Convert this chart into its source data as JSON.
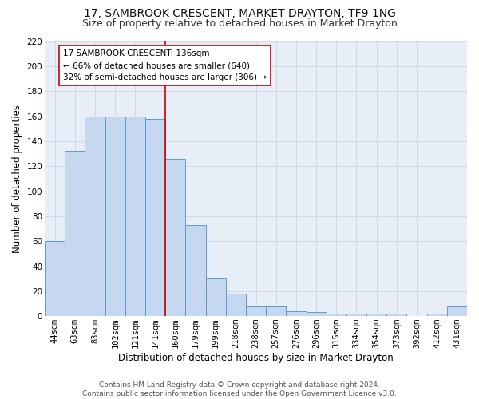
{
  "title": "17, SAMBROOK CRESCENT, MARKET DRAYTON, TF9 1NG",
  "subtitle": "Size of property relative to detached houses in Market Drayton",
  "xlabel": "Distribution of detached houses by size in Market Drayton",
  "ylabel": "Number of detached properties",
  "categories": [
    "44sqm",
    "63sqm",
    "83sqm",
    "102sqm",
    "121sqm",
    "141sqm",
    "160sqm",
    "179sqm",
    "199sqm",
    "218sqm",
    "238sqm",
    "257sqm",
    "276sqm",
    "296sqm",
    "315sqm",
    "334sqm",
    "354sqm",
    "373sqm",
    "392sqm",
    "412sqm",
    "431sqm"
  ],
  "values": [
    60,
    132,
    160,
    160,
    160,
    158,
    126,
    73,
    31,
    18,
    8,
    8,
    4,
    3,
    2,
    2,
    2,
    2,
    0,
    2,
    8
  ],
  "bar_color": "#c5d8ef",
  "bar_edge_color": "#5b9bd5",
  "vline_color": "#cc0000",
  "vline_x": 5.5,
  "annotation_text": "17 SAMBROOK CRESCENT: 136sqm\n← 66% of detached houses are smaller (640)\n32% of semi-detached houses are larger (306) →",
  "annotation_box_color": "#ffffff",
  "annotation_box_edge_color": "#cc0000",
  "ylim": [
    0,
    220
  ],
  "yticks": [
    0,
    20,
    40,
    60,
    80,
    100,
    120,
    140,
    160,
    180,
    200,
    220
  ],
  "grid_color": "#cdd5e5",
  "background_color": "#e8eef8",
  "footnote": "Contains HM Land Registry data © Crown copyright and database right 2024.\nContains public sector information licensed under the Open Government Licence v3.0.",
  "title_fontsize": 10,
  "subtitle_fontsize": 9,
  "xlabel_fontsize": 8.5,
  "ylabel_fontsize": 8.5,
  "tick_fontsize": 7.5,
  "annotation_fontsize": 7.5,
  "footnote_fontsize": 6.5
}
